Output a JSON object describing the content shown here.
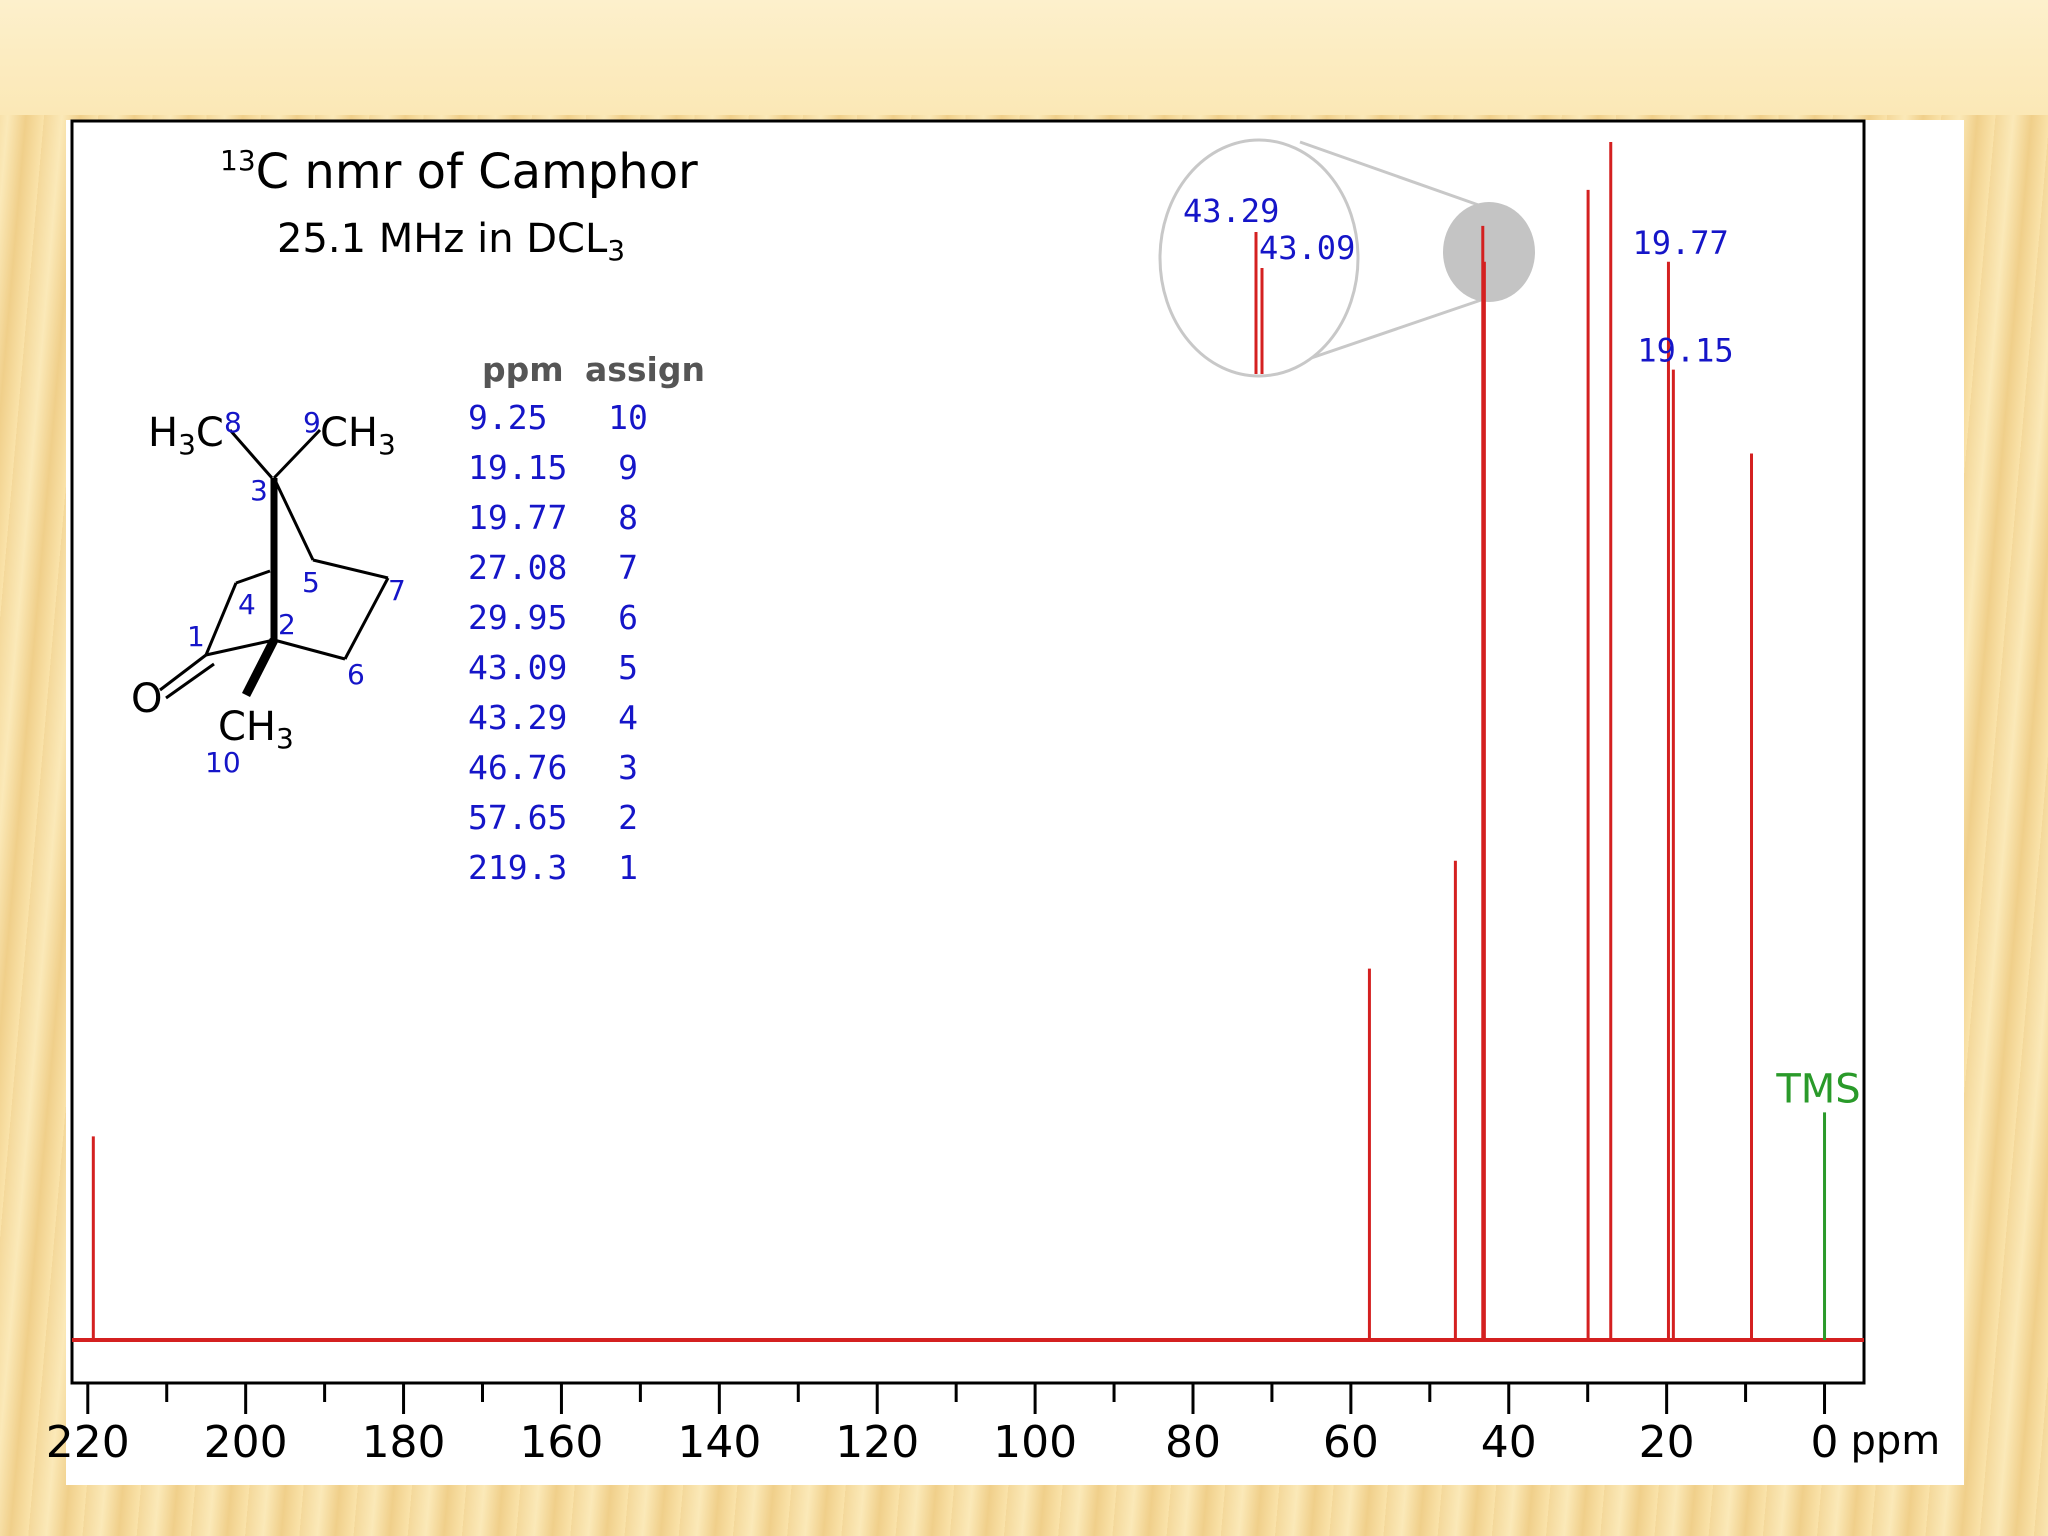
{
  "chart_data": {
    "type": "line",
    "title_prefix": "13",
    "title": "C nmr of Camphor",
    "subtitle_main": "25.1 MHz in DCL",
    "subtitle_sub": "3",
    "x_unit": "ppm",
    "xlim": [
      222,
      -5
    ],
    "x_ticks": [
      220,
      200,
      180,
      160,
      140,
      120,
      100,
      80,
      60,
      40,
      20,
      0
    ],
    "series": [
      {
        "peaks": [
          {
            "ppm": 219.3,
            "height": 0.17
          },
          {
            "ppm": 57.65,
            "height": 0.31
          },
          {
            "ppm": 46.76,
            "height": 0.4
          },
          {
            "ppm": 43.29,
            "height": 0.93
          },
          {
            "ppm": 43.09,
            "height": 0.9
          },
          {
            "ppm": 29.95,
            "height": 0.96
          },
          {
            "ppm": 27.08,
            "height": 1.0
          },
          {
            "ppm": 19.77,
            "height": 0.9
          },
          {
            "ppm": 19.15,
            "height": 0.81
          },
          {
            "ppm": 9.25,
            "height": 0.74
          }
        ],
        "color": "#d42020"
      }
    ],
    "reference": {
      "label": "TMS",
      "ppm": 0,
      "height": 0.19,
      "color": "#2a9a2a"
    },
    "peak_labels": [
      {
        "text": "19.77",
        "ppm": 19.77
      },
      {
        "text": "19.15",
        "ppm": 19.15
      }
    ],
    "inset": {
      "labels": [
        "43.29",
        "43.09"
      ]
    },
    "assignment_table": {
      "headers": [
        "ppm",
        "assign"
      ],
      "rows": [
        [
          "9.25",
          "10"
        ],
        [
          "19.15",
          "9"
        ],
        [
          "19.77",
          "8"
        ],
        [
          "27.08",
          "7"
        ],
        [
          "29.95",
          "6"
        ],
        [
          "43.09",
          "5"
        ],
        [
          "43.29",
          "4"
        ],
        [
          "46.76",
          "3"
        ],
        [
          "57.65",
          "2"
        ],
        [
          "219.3",
          "1"
        ]
      ]
    },
    "structure_labels": {
      "h3c": "H",
      "h3c_sub": "3",
      "h3c_c": "C",
      "n8": "8",
      "n9": "9",
      "ch3_top": "CH",
      "ch3_top_sub": "3",
      "n3": "3",
      "n4": "4",
      "n5": "5",
      "n7": "7",
      "n1": "1",
      "n2": "2",
      "n6": "6",
      "o": "O",
      "ch3_bottom": "CH",
      "ch3_bottom_sub": "3",
      "n10": "10"
    },
    "colors": {
      "label_blue": "#1515c8",
      "axis": "#000000"
    }
  }
}
